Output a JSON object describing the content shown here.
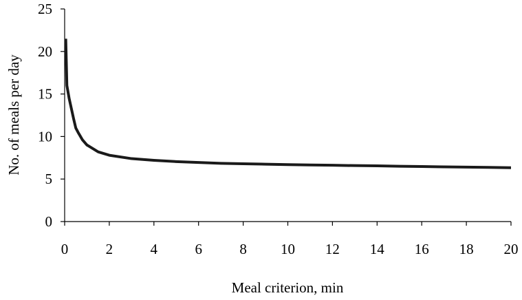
{
  "chart_data": {
    "type": "line",
    "title": "",
    "xlabel": "Meal criterion, min",
    "ylabel": "No. of meals per day",
    "xlim": [
      0,
      20
    ],
    "ylim": [
      0,
      25
    ],
    "xticks": [
      0,
      2,
      4,
      6,
      8,
      10,
      12,
      14,
      16,
      18,
      20
    ],
    "yticks": [
      0,
      5,
      10,
      15,
      20,
      25
    ],
    "grid": false,
    "legend": "none",
    "line_color": "#1a1a1a",
    "series": [
      {
        "x": [
          0.05,
          0.1,
          0.2,
          0.3,
          0.4,
          0.5,
          0.6,
          0.8,
          1.0,
          1.5,
          2,
          3,
          4,
          5,
          6,
          7,
          8,
          9,
          10,
          11,
          12,
          13,
          14,
          15,
          16,
          17,
          18,
          19,
          20
        ],
        "values": [
          21.5,
          16.0,
          14.5,
          13.3,
          12.1,
          11.0,
          10.5,
          9.6,
          9.0,
          8.2,
          7.8,
          7.4,
          7.2,
          7.05,
          6.95,
          6.85,
          6.8,
          6.75,
          6.7,
          6.65,
          6.62,
          6.58,
          6.55,
          6.5,
          6.47,
          6.43,
          6.4,
          6.37,
          6.33
        ]
      }
    ]
  }
}
